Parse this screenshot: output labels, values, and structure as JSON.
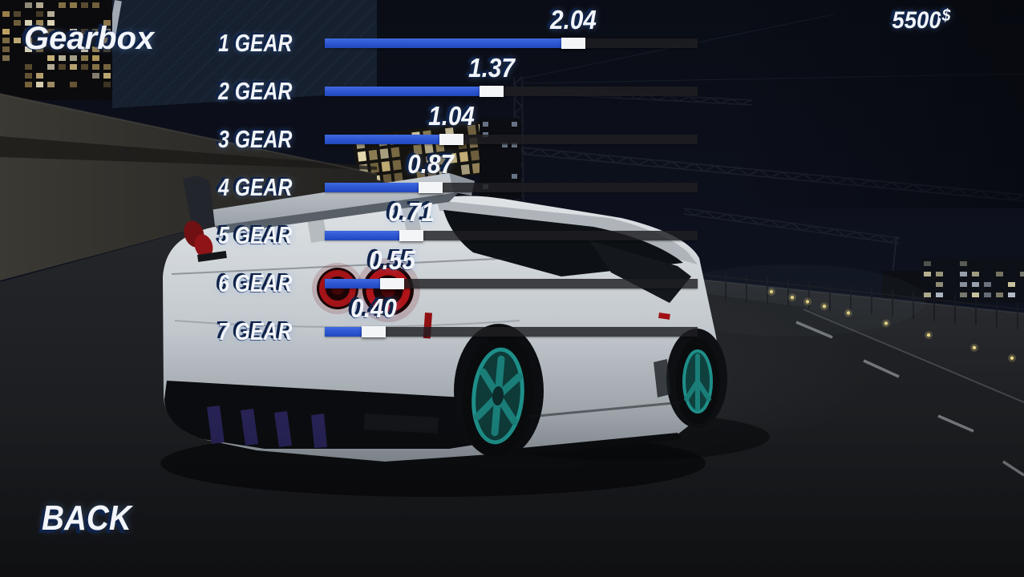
{
  "hud": {
    "title": "Gearbox",
    "money": {
      "amount": "5500",
      "currency": "$"
    },
    "back_label": "BACK"
  },
  "gearbox": {
    "gears": [
      {
        "label": "1 GEAR",
        "value": "2.04"
      },
      {
        "label": "2 GEAR",
        "value": "1.37"
      },
      {
        "label": "3 GEAR",
        "value": "1.04"
      },
      {
        "label": "4 GEAR",
        "value": "0.87"
      },
      {
        "label": "5 GEAR",
        "value": "0.71"
      },
      {
        "label": "6 GEAR",
        "value": "0.55"
      },
      {
        "label": "7 GEAR",
        "value": "0.40"
      }
    ]
  },
  "colors": {
    "slider_fill_blue": "#2b55d2",
    "slider_track": "#1e1f22",
    "slider_handle": "#f3f5f7",
    "ui_text": "#f2f5f9",
    "ui_text_shadow": "#0f2248",
    "car_wheel_teal": "#1e8e88",
    "tail_light_red": "#b01419",
    "street_light_yellow": "#e8d685"
  }
}
